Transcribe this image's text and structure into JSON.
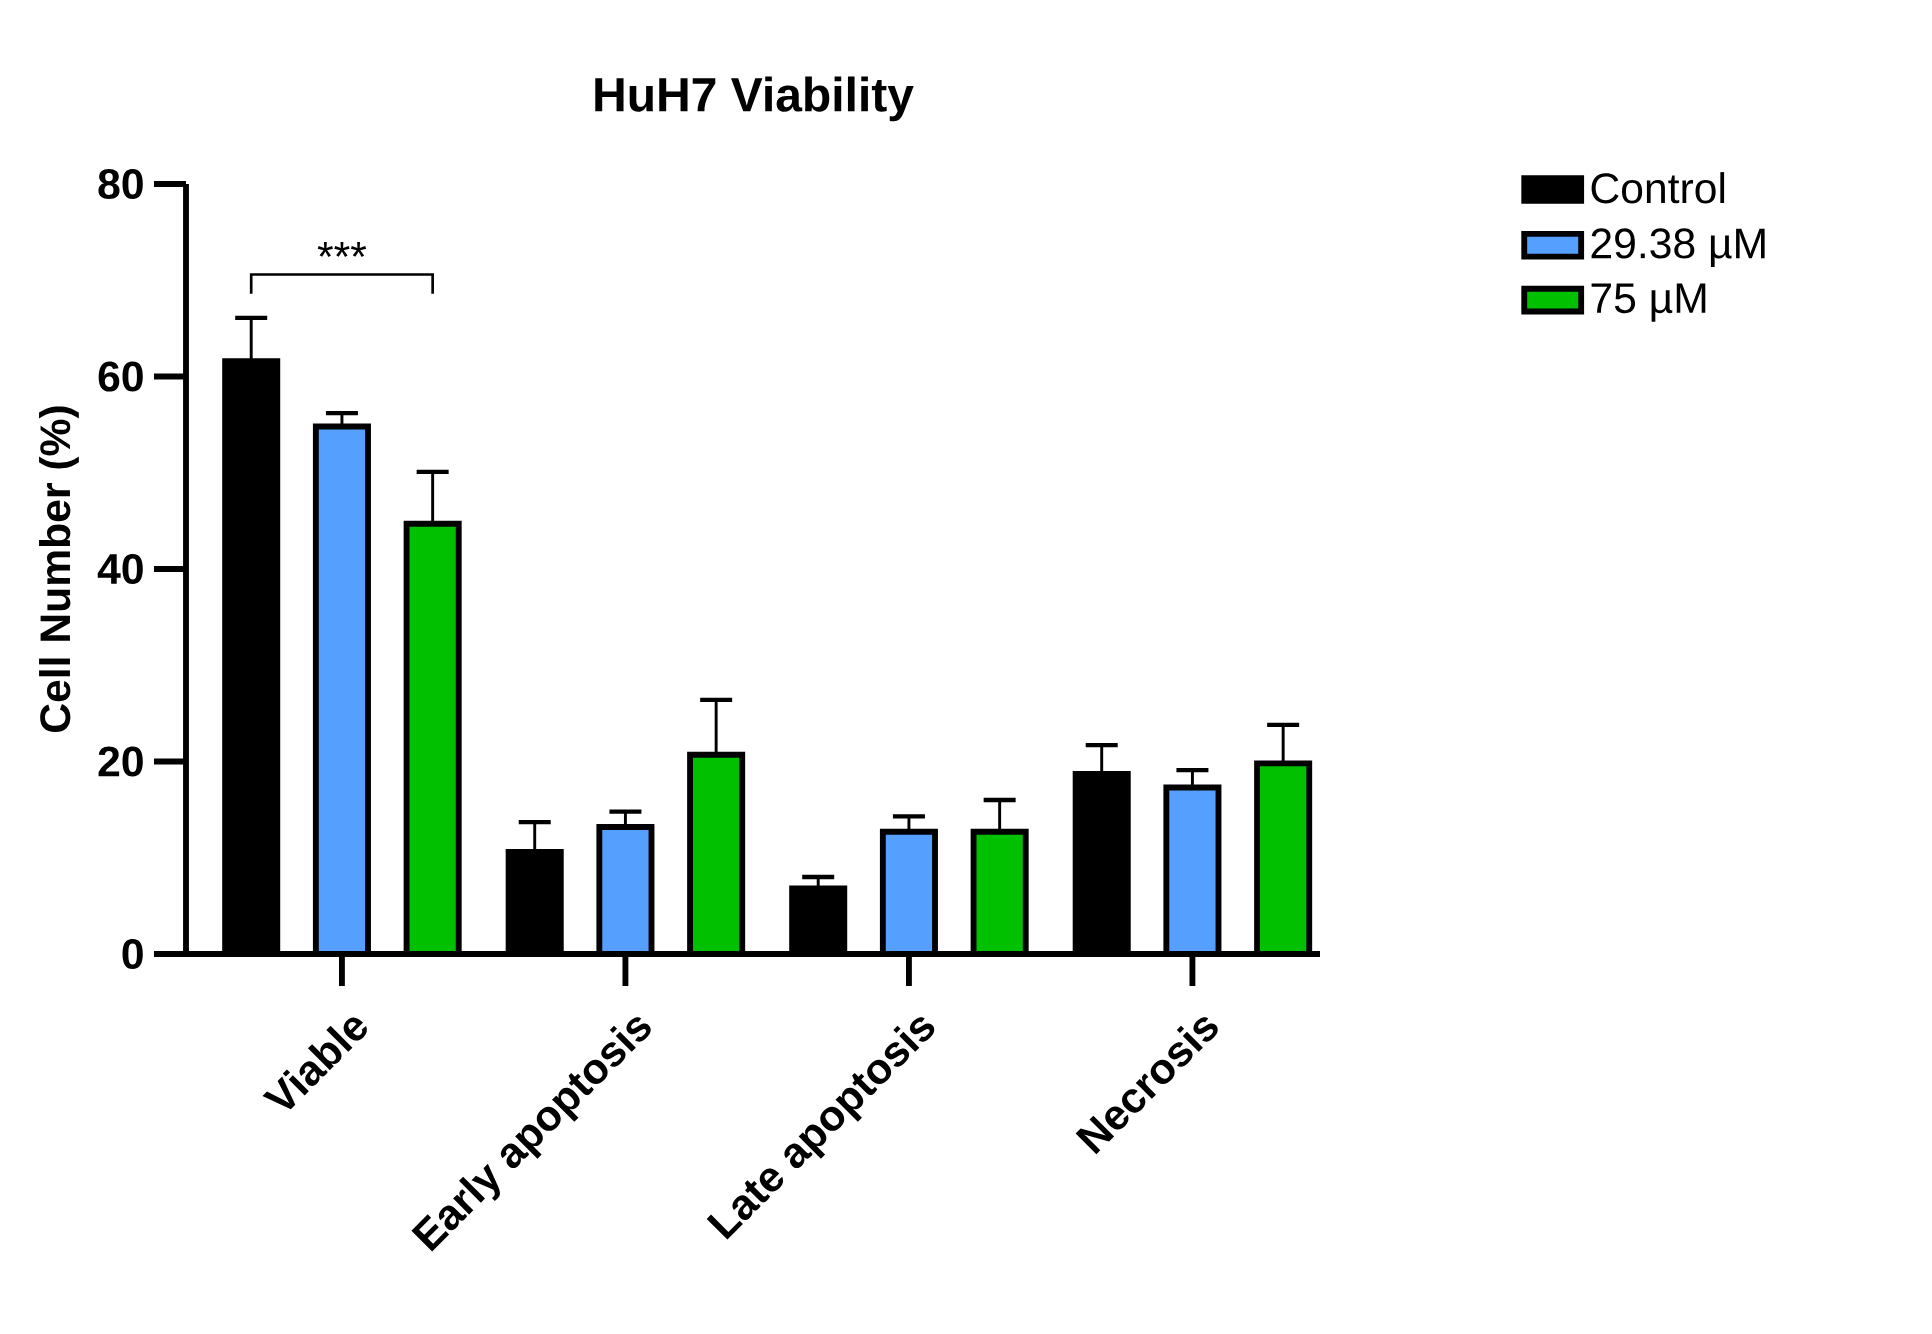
{
  "chart_data": {
    "type": "bar",
    "title": "HuH7 Viability",
    "ylabel": "Cell Number (%)",
    "categories": [
      "Viable",
      "Early apoptosis",
      "Late apoptosis",
      "Necrosis"
    ],
    "series": [
      {
        "name": "Control",
        "color": "#000000",
        "values": [
          61.6,
          10.6,
          6.8,
          18.7
        ],
        "errors": [
          4.5,
          3.1,
          1.2,
          3.0
        ]
      },
      {
        "name": "29.38 µM",
        "color": "#55a0ff",
        "values": [
          54.8,
          13.2,
          12.7,
          17.3
        ],
        "errors": [
          1.4,
          1.6,
          1.6,
          1.8
        ]
      },
      {
        "name": "75 µM",
        "color": "#00c000",
        "values": [
          44.7,
          20.7,
          12.7,
          19.8
        ],
        "errors": [
          5.4,
          5.7,
          3.3,
          4.0
        ]
      }
    ],
    "ylim": [
      0,
      80
    ],
    "yticks": [
      0,
      20,
      40,
      60,
      80
    ],
    "grid": false,
    "legend": "right",
    "annotations": [
      "***"
    ]
  }
}
